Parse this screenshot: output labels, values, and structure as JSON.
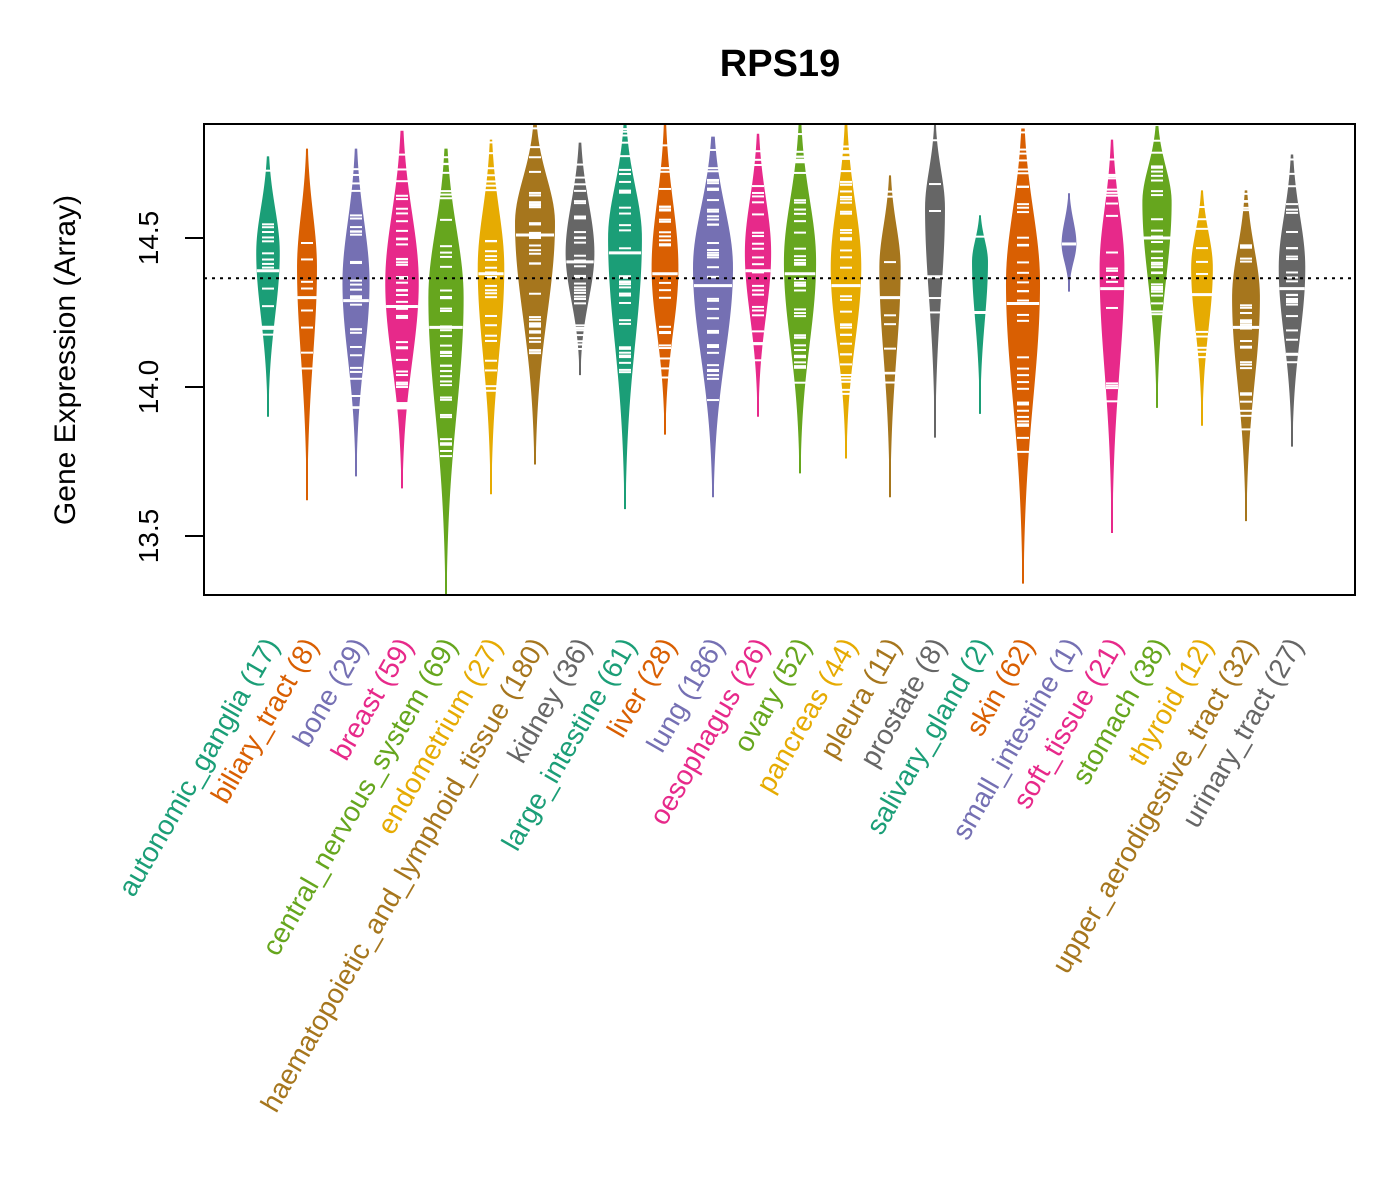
{
  "chart_data": {
    "type": "violin",
    "title": "RPS19",
    "xlabel": "",
    "ylabel": "Gene Expression (Array)",
    "ylim": [
      13.3,
      14.88
    ],
    "yticks": [
      13.5,
      14.0,
      14.5
    ],
    "ytick_labels": [
      "13.5",
      "14.0",
      "14.5"
    ],
    "reference_line": {
      "value": 14.365,
      "style": "dotted"
    },
    "grid": false,
    "legend": "none",
    "palette": [
      "#1B9E77",
      "#D95F02",
      "#7570B3",
      "#E7298A",
      "#66A61E",
      "#E6AB02",
      "#A6761D",
      "#666666"
    ],
    "categories": [
      {
        "name": "autonomic_ganglia",
        "n": 17,
        "label": "autonomic_ganglia (17)",
        "color": "#1B9E77",
        "min": 13.9,
        "max": 14.78,
        "median": 14.39,
        "mode": 14.45
      },
      {
        "name": "biliary_tract",
        "n": 8,
        "label": "biliary_tract (8)",
        "color": "#D95F02",
        "min": 13.62,
        "max": 14.8,
        "median": 14.3,
        "mode": 14.4
      },
      {
        "name": "bone",
        "n": 29,
        "label": "bone (29)",
        "color": "#7570B3",
        "min": 13.7,
        "max": 14.8,
        "median": 14.29,
        "mode": 14.35
      },
      {
        "name": "breast",
        "n": 59,
        "label": "breast (59)",
        "color": "#E7298A",
        "min": 13.66,
        "max": 14.86,
        "median": 14.27,
        "mode": 14.35
      },
      {
        "name": "central_nervous_system",
        "n": 69,
        "label": "central_nervous_system (69)",
        "color": "#66A61E",
        "min": 13.3,
        "max": 14.8,
        "median": 14.2,
        "mode": 14.3
      },
      {
        "name": "endometrium",
        "n": 27,
        "label": "endometrium (27)",
        "color": "#E6AB02",
        "min": 13.64,
        "max": 14.83,
        "median": 14.38,
        "mode": 14.4
      },
      {
        "name": "haematopoietic_and_lymphoid_tissue",
        "n": 180,
        "label": "haematopoietic_and_lymphoid_tissue (180)",
        "color": "#A6761D",
        "min": 13.74,
        "max": 14.88,
        "median": 14.51,
        "mode": 14.55
      },
      {
        "name": "kidney",
        "n": 36,
        "label": "kidney (36)",
        "color": "#666666",
        "min": 14.04,
        "max": 14.82,
        "median": 14.42,
        "mode": 14.45
      },
      {
        "name": "large_intestine",
        "n": 61,
        "label": "large_intestine (61)",
        "color": "#1B9E77",
        "min": 13.59,
        "max": 14.88,
        "median": 14.45,
        "mode": 14.5
      },
      {
        "name": "liver",
        "n": 28,
        "label": "liver (28)",
        "color": "#D95F02",
        "min": 13.84,
        "max": 14.88,
        "median": 14.38,
        "mode": 14.4
      },
      {
        "name": "lung",
        "n": 186,
        "label": "lung (186)",
        "color": "#7570B3",
        "min": 13.63,
        "max": 14.84,
        "median": 14.34,
        "mode": 14.4
      },
      {
        "name": "oesophagus",
        "n": 26,
        "label": "oesophagus (26)",
        "color": "#E7298A",
        "min": 13.9,
        "max": 14.85,
        "median": 14.39,
        "mode": 14.45
      },
      {
        "name": "ovary",
        "n": 52,
        "label": "ovary (52)",
        "color": "#66A61E",
        "min": 13.71,
        "max": 14.88,
        "median": 14.38,
        "mode": 14.42
      },
      {
        "name": "pancreas",
        "n": 44,
        "label": "pancreas (44)",
        "color": "#E6AB02",
        "min": 13.76,
        "max": 14.88,
        "median": 14.34,
        "mode": 14.4
      },
      {
        "name": "pleura",
        "n": 11,
        "label": "pleura (11)",
        "color": "#A6761D",
        "min": 13.63,
        "max": 14.71,
        "median": 14.3,
        "mode": 14.4
      },
      {
        "name": "prostate",
        "n": 8,
        "label": "prostate (8)",
        "color": "#666666",
        "min": 13.83,
        "max": 14.88,
        "median": 14.37,
        "mode": 14.6
      },
      {
        "name": "salivary_gland",
        "n": 2,
        "label": "salivary_gland (2)",
        "color": "#1B9E77",
        "min": 13.91,
        "max": 14.58,
        "median": 14.25,
        "mode": 14.42
      },
      {
        "name": "skin",
        "n": 62,
        "label": "skin (62)",
        "color": "#D95F02",
        "min": 13.34,
        "max": 14.88,
        "median": 14.28,
        "mode": 14.35
      },
      {
        "name": "small_intestine",
        "n": 1,
        "label": "small_intestine (1)",
        "color": "#7570B3",
        "min": 14.32,
        "max": 14.65,
        "median": 14.48,
        "mode": 14.48
      },
      {
        "name": "soft_tissue",
        "n": 21,
        "label": "soft_tissue (21)",
        "color": "#E7298A",
        "min": 13.51,
        "max": 14.83,
        "median": 14.33,
        "mode": 14.4
      },
      {
        "name": "stomach",
        "n": 38,
        "label": "stomach (38)",
        "color": "#66A61E",
        "min": 13.93,
        "max": 14.88,
        "median": 14.5,
        "mode": 14.62
      },
      {
        "name": "thyroid",
        "n": 12,
        "label": "thyroid (12)",
        "color": "#E6AB02",
        "min": 13.87,
        "max": 14.66,
        "median": 14.31,
        "mode": 14.4
      },
      {
        "name": "upper_aerodigestive_tract",
        "n": 32,
        "label": "upper_aerodigestive_tract (32)",
        "color": "#A6761D",
        "min": 13.55,
        "max": 14.66,
        "median": 14.2,
        "mode": 14.3
      },
      {
        "name": "urinary_tract",
        "n": 27,
        "label": "urinary_tract (27)",
        "color": "#666666",
        "min": 13.8,
        "max": 14.78,
        "median": 14.33,
        "mode": 14.4
      }
    ]
  }
}
